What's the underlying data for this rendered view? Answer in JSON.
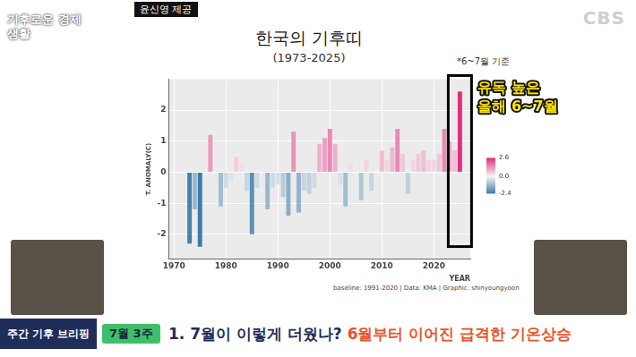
{
  "page": {
    "logo": "기후로운 경제생활",
    "credit": "윤신영 제공",
    "channel": "CBS",
    "note": "*6~7월 기준",
    "banner": {
      "label": "주간 기후 브리핑",
      "week": "7월 3주",
      "headline": "1. 7월이 이렇게 더웠나?",
      "headline_highlight": "6월부터 이어진 급격한 기온상승"
    }
  },
  "chart_data": {
    "type": "bar",
    "title": "한국의 기후띠",
    "subtitle": "(1973-2025)",
    "x_label": "YEAR",
    "y_label": "T. ANOMALY(C)",
    "caption": "baseline: 1991-2020 | Data: KMA | Graphic: shinyoungyoon",
    "x": [
      1973,
      1974,
      1975,
      1976,
      1977,
      1978,
      1979,
      1980,
      1981,
      1982,
      1983,
      1984,
      1985,
      1986,
      1987,
      1988,
      1989,
      1990,
      1991,
      1992,
      1993,
      1994,
      1995,
      1996,
      1997,
      1998,
      1999,
      2000,
      2001,
      2002,
      2003,
      2004,
      2005,
      2006,
      2007,
      2008,
      2009,
      2010,
      2011,
      2012,
      2013,
      2014,
      2015,
      2016,
      2017,
      2018,
      2019,
      2020,
      2021,
      2022,
      2023,
      2024,
      2025
    ],
    "values": [
      -2.3,
      -1.2,
      -2.4,
      -0.1,
      1.2,
      -0.2,
      -1.1,
      -0.5,
      -0.3,
      0.5,
      0.3,
      -0.6,
      -2.0,
      -0.5,
      0.2,
      -1.2,
      -0.5,
      -0.4,
      -0.8,
      -1.4,
      1.3,
      -1.3,
      -0.6,
      -0.7,
      -0.5,
      0.9,
      1.1,
      1.4,
      0.9,
      -0.4,
      -1.1,
      0.3,
      -0.1,
      -0.9,
      0.4,
      -0.6,
      0.1,
      0.7,
      0.4,
      0.8,
      1.4,
      0.6,
      -0.7,
      0.4,
      0.6,
      0.7,
      0.4,
      0.4,
      0.6,
      1.4,
      1.0,
      0.7,
      2.6
    ],
    "xlim": [
      1969,
      2027
    ],
    "xticks": [
      1970,
      1980,
      1990,
      2000,
      2010,
      2020
    ],
    "ylim": [
      -2.8,
      3.0
    ],
    "yticks": [
      -2,
      -1,
      0,
      1,
      2
    ],
    "grid": true,
    "colorbar": {
      "range": [
        -2.4,
        2.6
      ],
      "ticks": [
        2.6,
        {
          "value": 0,
          "label": "0.0"
        },
        -2.4
      ],
      "colors": [
        "#3d7ca8",
        "#f4f4f4",
        "#e0307f"
      ]
    },
    "annotations": [
      {
        "text": "유독 높은 올해 6~7월",
        "x": 2025
      }
    ]
  }
}
